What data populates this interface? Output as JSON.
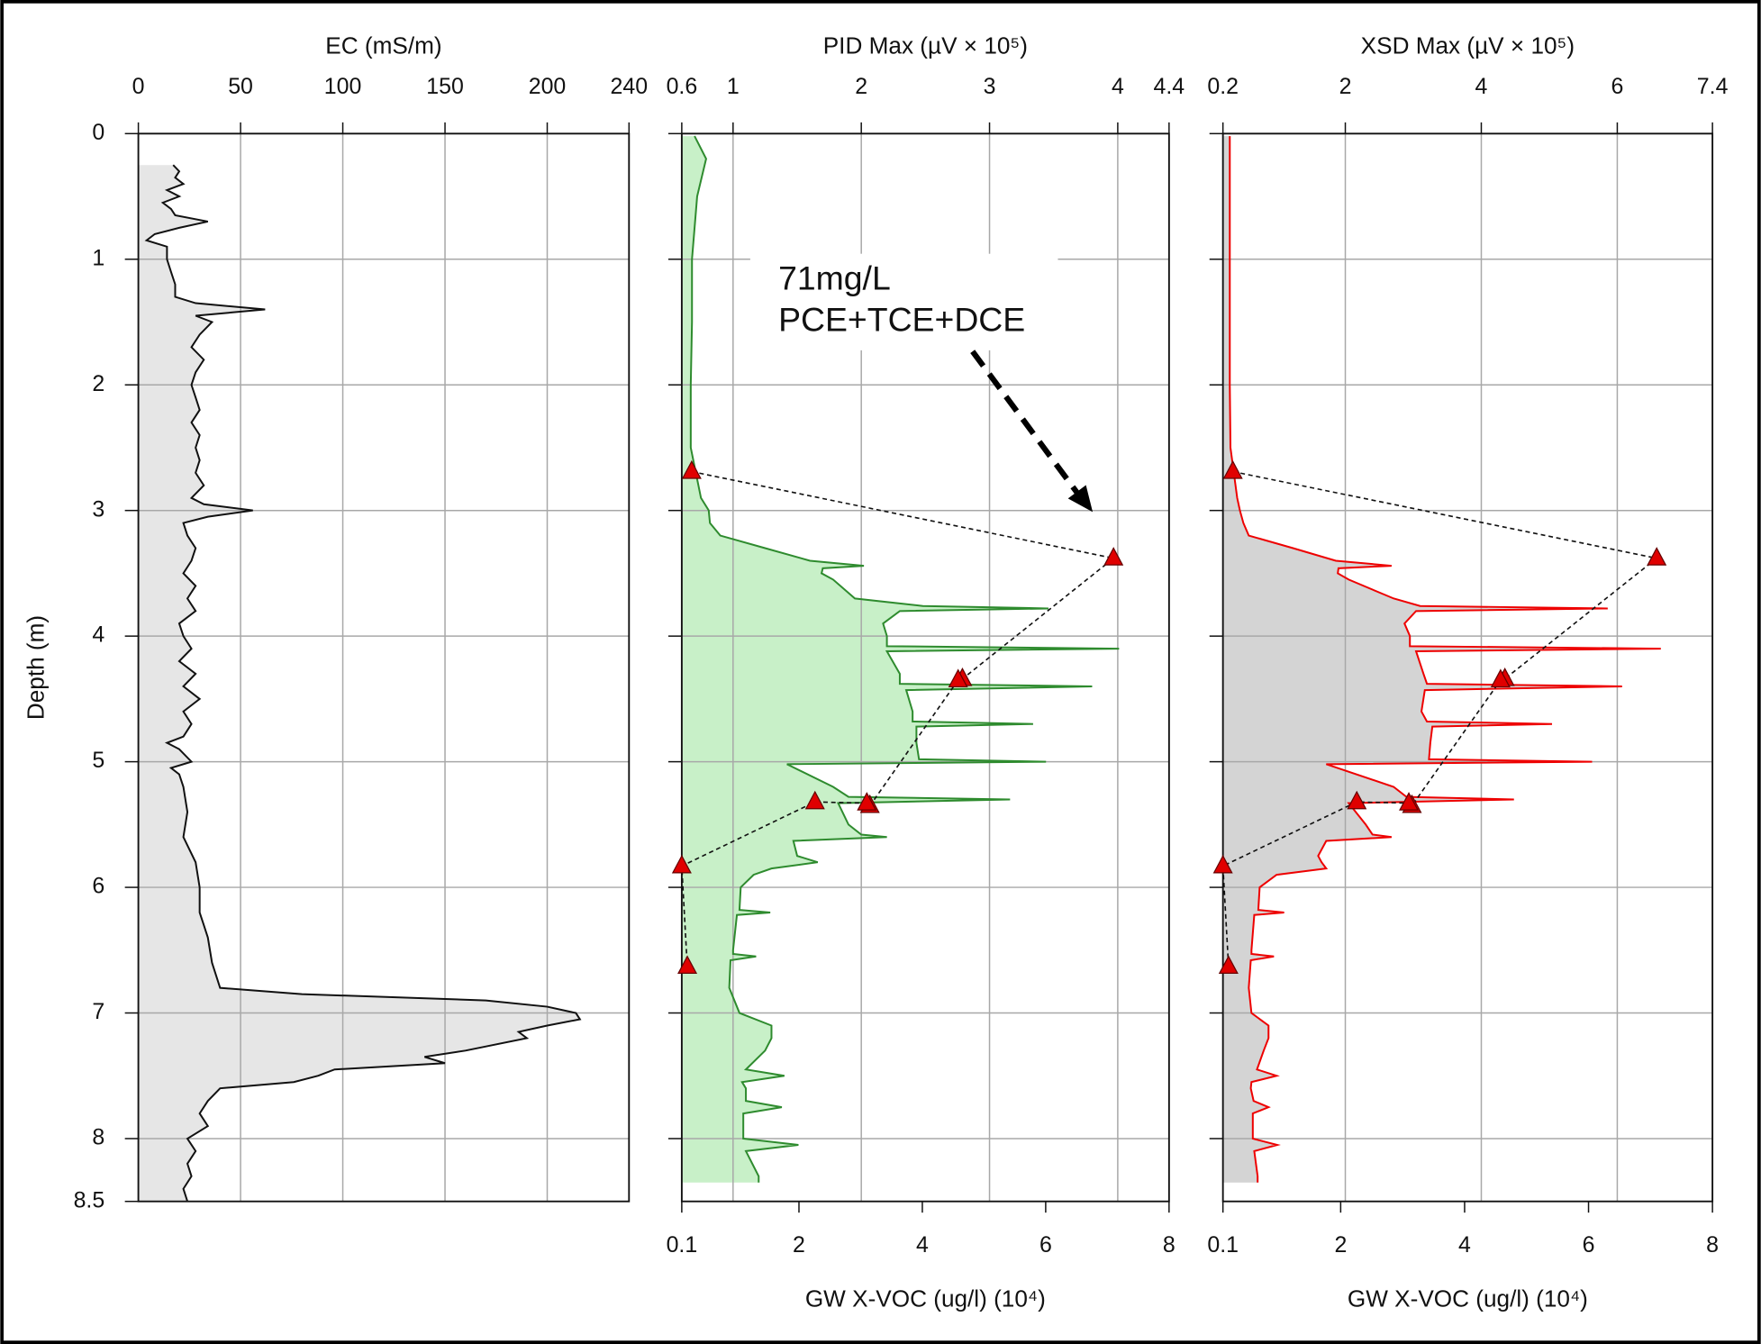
{
  "chart_data": [
    {
      "type": "area",
      "title": "EC (mS/m)",
      "ylabel": "Depth (m)",
      "show_ytick_labels": true,
      "xlim": [
        0,
        240
      ],
      "xticks": [
        0,
        50,
        100,
        150,
        200,
        240
      ],
      "ylim": [
        0,
        8.5
      ],
      "yticks": [
        0,
        1,
        2,
        3,
        4,
        5,
        6,
        7,
        8,
        8.5
      ],
      "grid": true,
      "color": "#111111",
      "fill": "#e6e6e6",
      "y": [
        0.25,
        0.3,
        0.35,
        0.4,
        0.45,
        0.5,
        0.55,
        0.6,
        0.65,
        0.7,
        0.75,
        0.8,
        0.85,
        0.9,
        1.0,
        1.1,
        1.2,
        1.3,
        1.35,
        1.4,
        1.45,
        1.5,
        1.6,
        1.7,
        1.8,
        1.9,
        2.0,
        2.1,
        2.2,
        2.3,
        2.4,
        2.5,
        2.6,
        2.7,
        2.8,
        2.9,
        2.95,
        3.0,
        3.05,
        3.1,
        3.2,
        3.3,
        3.4,
        3.5,
        3.6,
        3.7,
        3.8,
        3.9,
        4.0,
        4.1,
        4.2,
        4.3,
        4.4,
        4.5,
        4.6,
        4.7,
        4.8,
        4.85,
        4.9,
        5.0,
        5.05,
        5.1,
        5.2,
        5.4,
        5.6,
        5.8,
        6.0,
        6.2,
        6.3,
        6.4,
        6.6,
        6.8,
        6.85,
        6.9,
        6.95,
        7.0,
        7.05,
        7.1,
        7.15,
        7.2,
        7.3,
        7.35,
        7.4,
        7.45,
        7.5,
        7.55,
        7.6,
        7.7,
        7.8,
        7.9,
        8.0,
        8.1,
        8.2,
        8.3,
        8.4,
        8.5
      ],
      "values": [
        17,
        20,
        18,
        22,
        14,
        20,
        12,
        16,
        18,
        34,
        20,
        8,
        4,
        14,
        14,
        16,
        18,
        18,
        28,
        62,
        28,
        36,
        30,
        26,
        32,
        28,
        26,
        28,
        30,
        26,
        30,
        28,
        30,
        28,
        32,
        26,
        32,
        56,
        34,
        22,
        24,
        28,
        26,
        22,
        28,
        24,
        28,
        20,
        22,
        26,
        20,
        28,
        22,
        30,
        22,
        26,
        22,
        14,
        20,
        26,
        16,
        20,
        22,
        24,
        22,
        28,
        30,
        30,
        32,
        34,
        36,
        40,
        80,
        170,
        200,
        214,
        216,
        200,
        186,
        190,
        160,
        140,
        150,
        96,
        88,
        76,
        40,
        34,
        30,
        34,
        24,
        28,
        24,
        26,
        22,
        24
      ]
    },
    {
      "type": "area",
      "title": "PID Max (µV × 10⁵)",
      "show_ytick_labels": false,
      "xlim": [
        0.6,
        4.4
      ],
      "xticks": [
        0.6,
        1,
        2,
        3,
        4,
        4.4
      ],
      "ylim": [
        0,
        8.5
      ],
      "yticks": [
        0,
        1,
        2,
        3,
        4,
        5,
        6,
        7,
        8
      ],
      "grid": true,
      "color": "#2e8b2e",
      "fill": "#c8f0c8",
      "x2label": "GW X-VOC (ug/l) (10⁴)",
      "x2lim": [
        0.1,
        8
      ],
      "x2ticks": [
        0.1,
        2,
        4,
        6,
        8
      ],
      "y": [
        0.02,
        0.2,
        0.5,
        1.0,
        1.5,
        2.0,
        2.5,
        2.9,
        3.0,
        3.1,
        3.2,
        3.3,
        3.4,
        3.44,
        3.46,
        3.5,
        3.55,
        3.7,
        3.76,
        3.78,
        3.8,
        3.9,
        4.0,
        4.08,
        4.1,
        4.12,
        4.3,
        4.38,
        4.4,
        4.43,
        4.6,
        4.68,
        4.7,
        4.72,
        4.85,
        4.98,
        5.0,
        5.02,
        5.2,
        5.28,
        5.3,
        5.33,
        5.5,
        5.58,
        5.6,
        5.63,
        5.75,
        5.8,
        5.85,
        5.9,
        6.0,
        6.18,
        6.2,
        6.22,
        6.5,
        6.53,
        6.55,
        6.58,
        6.8,
        7.0,
        7.1,
        7.2,
        7.3,
        7.45,
        7.5,
        7.55,
        7.6,
        7.7,
        7.75,
        7.8,
        8.0,
        8.05,
        8.1,
        8.3,
        8.35
      ],
      "values": [
        0.7,
        0.79,
        0.72,
        0.68,
        0.68,
        0.67,
        0.67,
        0.75,
        0.81,
        0.82,
        0.9,
        1.25,
        1.6,
        2.02,
        1.7,
        1.69,
        1.78,
        1.95,
        2.48,
        3.46,
        2.3,
        2.17,
        2.2,
        2.2,
        4.01,
        2.2,
        2.3,
        2.3,
        3.8,
        2.35,
        2.4,
        2.4,
        3.34,
        2.43,
        2.43,
        2.45,
        3.44,
        1.42,
        1.78,
        1.9,
        3.16,
        1.82,
        1.9,
        2.0,
        2.2,
        1.47,
        1.5,
        1.66,
        1.3,
        1.16,
        1.06,
        1.05,
        1.29,
        1.03,
        1.0,
        1.0,
        1.18,
        0.98,
        0.97,
        1.05,
        1.3,
        1.3,
        1.25,
        1.1,
        1.4,
        1.07,
        1.1,
        1.1,
        1.38,
        1.08,
        1.08,
        1.51,
        1.1,
        1.2,
        1.2
      ],
      "samples": {
        "color": "#e00000",
        "x": [
          0.26,
          7.1,
          4.65,
          4.58,
          3.15,
          3.1,
          2.26,
          0.1,
          0.19
        ],
        "y": [
          2.69,
          3.38,
          4.34,
          4.35,
          5.35,
          5.33,
          5.32,
          5.83,
          6.63
        ]
      },
      "annotation": [
        "71mg/L",
        "PCE+TCE+DCE"
      ]
    },
    {
      "type": "area",
      "title": "XSD Max (µV × 10⁵)",
      "show_ytick_labels": false,
      "xlim": [
        0.2,
        7.4
      ],
      "xticks": [
        0.2,
        2,
        4,
        6,
        7.4
      ],
      "ylim": [
        0,
        8.5
      ],
      "yticks": [
        0,
        1,
        2,
        3,
        4,
        5,
        6,
        7,
        8
      ],
      "grid": true,
      "color": "#ee0000",
      "fill": "#d4d4d4",
      "x2label": "GW X-VOC (ug/l) (10⁴)",
      "x2lim": [
        0.1,
        8
      ],
      "x2ticks": [
        0.1,
        2,
        4,
        6,
        8
      ],
      "y": [
        0.02,
        0.2,
        0.5,
        1.0,
        1.5,
        2.0,
        2.5,
        2.9,
        3.0,
        3.1,
        3.2,
        3.3,
        3.4,
        3.44,
        3.46,
        3.5,
        3.55,
        3.7,
        3.76,
        3.78,
        3.8,
        3.9,
        4.0,
        4.08,
        4.1,
        4.12,
        4.3,
        4.38,
        4.4,
        4.43,
        4.6,
        4.68,
        4.7,
        4.72,
        4.85,
        4.98,
        5.0,
        5.02,
        5.2,
        5.28,
        5.3,
        5.33,
        5.5,
        5.58,
        5.6,
        5.63,
        5.75,
        5.8,
        5.85,
        5.9,
        6.0,
        6.18,
        6.2,
        6.22,
        6.5,
        6.53,
        6.55,
        6.58,
        6.8,
        7.0,
        7.1,
        7.2,
        7.3,
        7.45,
        7.5,
        7.55,
        7.6,
        7.7,
        7.75,
        7.8,
        8.0,
        8.05,
        8.1,
        8.3,
        8.35
      ],
      "values": [
        0.3,
        0.3,
        0.3,
        0.3,
        0.3,
        0.3,
        0.31,
        0.41,
        0.45,
        0.5,
        0.58,
        1.23,
        1.86,
        2.68,
        1.9,
        1.89,
        2.05,
        2.71,
        3.1,
        5.86,
        3.04,
        2.87,
        2.95,
        2.95,
        6.64,
        3.04,
        3.15,
        3.2,
        6.07,
        3.17,
        3.12,
        3.2,
        5.04,
        3.28,
        3.25,
        3.23,
        5.63,
        1.72,
        2.71,
        2.9,
        4.48,
        2.05,
        2.3,
        2.4,
        2.68,
        1.72,
        1.6,
        1.65,
        1.72,
        0.99,
        0.74,
        0.72,
        1.1,
        0.66,
        0.62,
        0.62,
        0.95,
        0.61,
        0.58,
        0.62,
        0.87,
        0.87,
        0.8,
        0.7,
        0.99,
        0.62,
        0.61,
        0.65,
        0.87,
        0.64,
        0.64,
        1.0,
        0.66,
        0.71,
        0.71
      ],
      "samples": {
        "color": "#e00000",
        "x": [
          0.26,
          7.1,
          4.65,
          4.58,
          3.15,
          3.1,
          2.26,
          0.1,
          0.19
        ],
        "y": [
          2.69,
          3.38,
          4.34,
          4.35,
          5.35,
          5.33,
          5.32,
          5.83,
          6.63
        ]
      }
    }
  ]
}
